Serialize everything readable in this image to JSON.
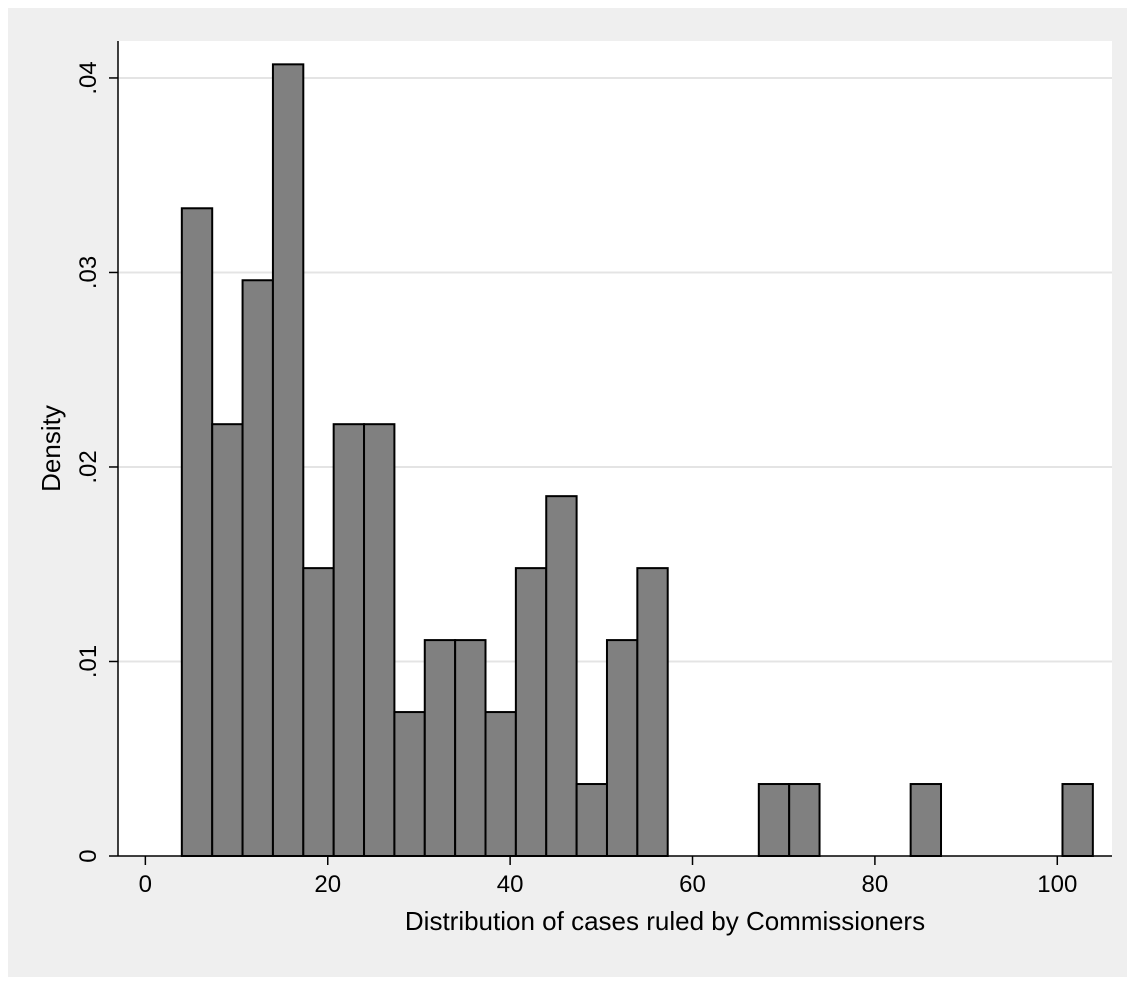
{
  "chart_data": {
    "type": "bar",
    "subtype": "histogram",
    "xlabel": "Distribution of cases ruled by Commissioners",
    "ylabel": "Density",
    "xlim": [
      -3,
      106
    ],
    "ylim": [
      0,
      0.0419
    ],
    "x_ticks": [
      {
        "value": 0,
        "label": "0"
      },
      {
        "value": 20,
        "label": "20"
      },
      {
        "value": 40,
        "label": "40"
      },
      {
        "value": 60,
        "label": "60"
      },
      {
        "value": 80,
        "label": "80"
      },
      {
        "value": 100,
        "label": "100"
      }
    ],
    "y_ticks": [
      {
        "value": 0,
        "label": "0"
      },
      {
        "value": 0.01,
        "label": ".01"
      },
      {
        "value": 0.02,
        "label": ".02"
      },
      {
        "value": 0.03,
        "label": ".03"
      },
      {
        "value": 0.04,
        "label": ".04"
      }
    ],
    "grid": true,
    "colors": {
      "bar_fill": "#808080",
      "bar_stroke": "#000000",
      "plot_bg": "#ffffff",
      "outer_bg": "#efefef",
      "grid": "#e4e4e4"
    },
    "bins": [
      {
        "x0": 4.0,
        "x1": 7.33,
        "density": 0.0333
      },
      {
        "x0": 7.33,
        "x1": 10.66,
        "density": 0.0222
      },
      {
        "x0": 10.66,
        "x1": 13.99,
        "density": 0.0296
      },
      {
        "x0": 13.99,
        "x1": 17.32,
        "density": 0.0407
      },
      {
        "x0": 17.32,
        "x1": 20.65,
        "density": 0.0148
      },
      {
        "x0": 20.65,
        "x1": 23.98,
        "density": 0.0222
      },
      {
        "x0": 23.98,
        "x1": 27.31,
        "density": 0.0222
      },
      {
        "x0": 27.31,
        "x1": 30.64,
        "density": 0.0074
      },
      {
        "x0": 30.64,
        "x1": 33.97,
        "density": 0.0111
      },
      {
        "x0": 33.97,
        "x1": 37.3,
        "density": 0.0111
      },
      {
        "x0": 37.3,
        "x1": 40.63,
        "density": 0.0074
      },
      {
        "x0": 40.63,
        "x1": 43.96,
        "density": 0.0148
      },
      {
        "x0": 43.96,
        "x1": 47.29,
        "density": 0.0185
      },
      {
        "x0": 47.29,
        "x1": 50.62,
        "density": 0.0037
      },
      {
        "x0": 50.62,
        "x1": 53.95,
        "density": 0.0111
      },
      {
        "x0": 53.95,
        "x1": 57.28,
        "density": 0.0148
      },
      {
        "x0": 67.27,
        "x1": 70.6,
        "density": 0.0037
      },
      {
        "x0": 70.6,
        "x1": 73.93,
        "density": 0.0037
      },
      {
        "x0": 83.92,
        "x1": 87.25,
        "density": 0.0037
      },
      {
        "x0": 100.57,
        "x1": 103.9,
        "density": 0.0037
      }
    ]
  }
}
